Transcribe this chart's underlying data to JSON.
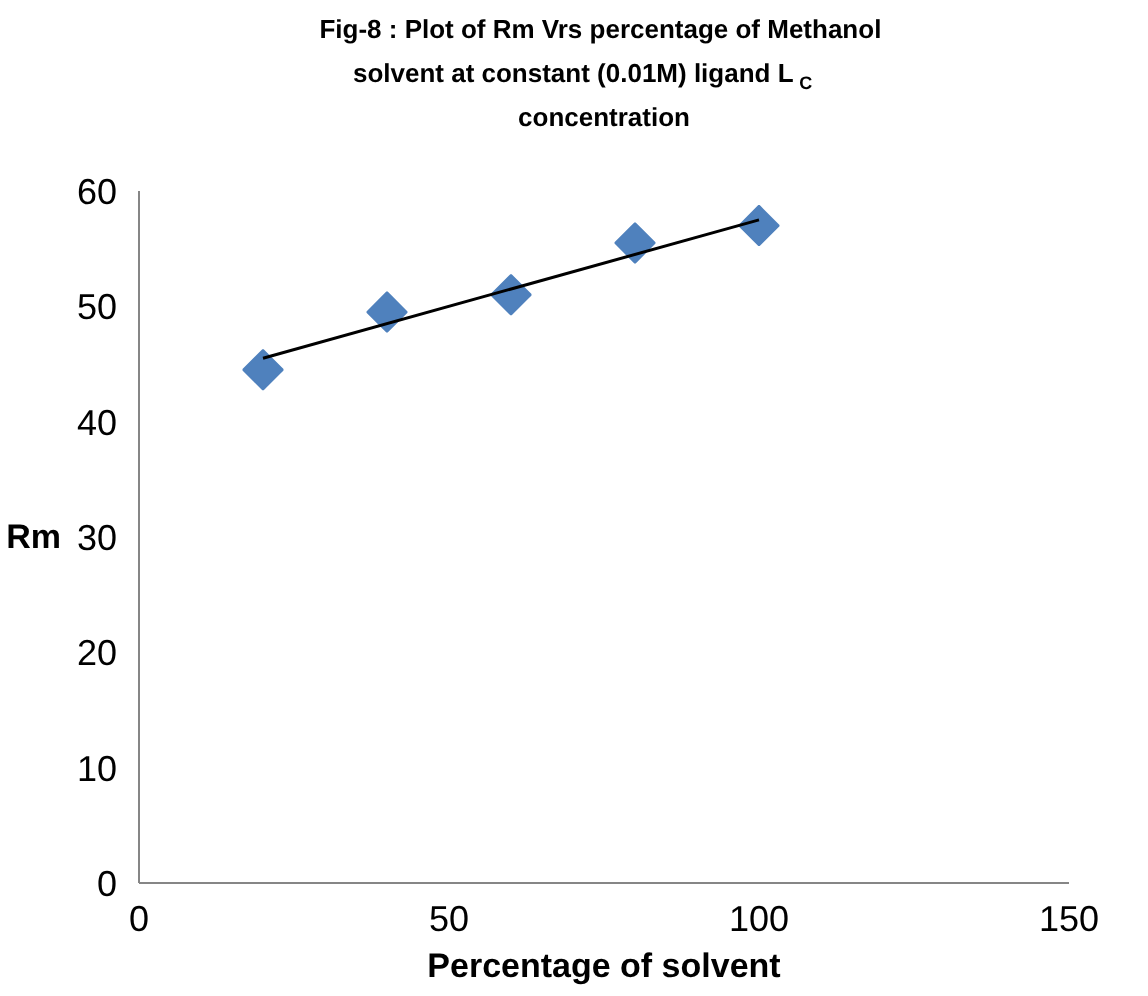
{
  "chart_data": {
    "type": "scatter",
    "title": "Fig-8 :  Plot of Rm Vrs percentage of Methanol\nsolvent at constant (0.01M) ligand  L$_{C}$\nconcentration",
    "xlabel": "Percentage of solvent",
    "ylabel": "Rm",
    "x": [
      20,
      40,
      60,
      80,
      100
    ],
    "series": [
      {
        "color": "#4f81bd",
        "marker": "diamond",
        "values": [
          44.5,
          49.5,
          51,
          55.5,
          57
        ]
      },
      {
        "type": "line",
        "color": "#000000",
        "marker": "none",
        "x": [
          20,
          100
        ],
        "values": [
          45.5,
          57.5
        ]
      }
    ],
    "xlim": [
      0,
      150
    ],
    "xticks": [
      0,
      50,
      100,
      150
    ],
    "ylim": [
      0,
      60
    ],
    "yticks": [
      0,
      10,
      20,
      30,
      40,
      50,
      60
    ],
    "grid": false
  }
}
